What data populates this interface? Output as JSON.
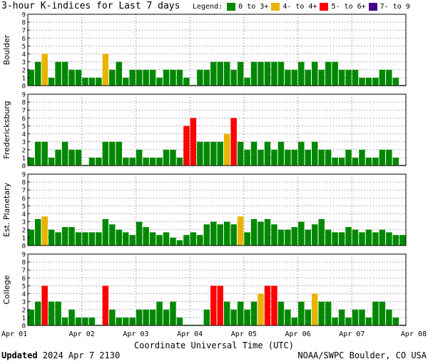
{
  "title": "3-hour K-indices for Last 7 days",
  "legend": {
    "label": "Legend:",
    "items": [
      {
        "text": "0 to 3+",
        "color": "#008800"
      },
      {
        "text": "4- to 4+",
        "color": "#e8b400"
      },
      {
        "text": "5- to 6+",
        "color": "#ff0000"
      },
      {
        "text": "7- to 9",
        "color": "#440088"
      }
    ]
  },
  "footer": {
    "updated_label": "Updated",
    "updated_value": "2024 Apr  7 2130",
    "credit": "NOAA/SWPC Boulder, CO USA"
  },
  "chart_data": [
    {
      "type": "bar",
      "ylabel": "Boulder",
      "ylim": [
        0,
        9
      ],
      "values": [
        2,
        3,
        4,
        1,
        3,
        3,
        2,
        2,
        1,
        1,
        1,
        4,
        2,
        3,
        1,
        2,
        2,
        2,
        2,
        1,
        2,
        2,
        2,
        1,
        0,
        2,
        2,
        3,
        3,
        3,
        2,
        3,
        1,
        3,
        3,
        3,
        3,
        3,
        2,
        2,
        3,
        2,
        3,
        2,
        3,
        3,
        2,
        2,
        2,
        1,
        1,
        1,
        2,
        2,
        1,
        0
      ]
    },
    {
      "type": "bar",
      "ylabel": "Fredericksburg",
      "ylim": [
        0,
        9
      ],
      "values": [
        1,
        3,
        3,
        1,
        2,
        3,
        2,
        2,
        0,
        1,
        1,
        3,
        3,
        3,
        1,
        1,
        2,
        1,
        1,
        1,
        2,
        2,
        1,
        5,
        6,
        3,
        3,
        3,
        3,
        4,
        6,
        3,
        2,
        3,
        2,
        3,
        2,
        3,
        2,
        2,
        3,
        2,
        3,
        2,
        2,
        1,
        1,
        2,
        1,
        2,
        1,
        1,
        2,
        2,
        1,
        0
      ]
    },
    {
      "type": "bar",
      "ylabel": "Est. Planetary",
      "ylim": [
        0,
        9
      ],
      "values": [
        2,
        3.33,
        3.67,
        2,
        1.67,
        2.33,
        2.33,
        1.67,
        1.67,
        1.67,
        1.67,
        3.33,
        2.67,
        2,
        1.67,
        1.33,
        3,
        2.33,
        1.67,
        1.33,
        1.67,
        1,
        0.67,
        1.33,
        1.67,
        1.33,
        2.67,
        3,
        2.67,
        3,
        2.67,
        3.67,
        1.67,
        3.33,
        3,
        3.33,
        2.67,
        2,
        2,
        2.33,
        3,
        2,
        2.67,
        3.33,
        2,
        1.67,
        1.67,
        2.33,
        2,
        1.67,
        2,
        1.67,
        2,
        1.67,
        1.33,
        1.33
      ]
    },
    {
      "type": "bar",
      "ylabel": "College",
      "ylim": [
        0,
        9
      ],
      "values": [
        2,
        3,
        5,
        3,
        3,
        1,
        2,
        1,
        1,
        1,
        0,
        5,
        2,
        1,
        1,
        1,
        2,
        2,
        2,
        3,
        2,
        3,
        1,
        0,
        0,
        0,
        2,
        5,
        5,
        3,
        2,
        3,
        2,
        3,
        4,
        5,
        5,
        3,
        2,
        1,
        3,
        2,
        4,
        3,
        3,
        1,
        2,
        1,
        2,
        2,
        1,
        3,
        3,
        2,
        1,
        0
      ]
    }
  ],
  "x_ticks": [
    "Apr 01",
    "Apr 02",
    "Apr 03",
    "Apr 04",
    "Apr 05",
    "Apr 06",
    "Apr 07",
    "Apr 08"
  ],
  "xlabel": "Coordinate Universal Time (UTC)",
  "y_ticks": [
    "0",
    "1",
    "2",
    "3",
    "4",
    "5",
    "6",
    "7",
    "8",
    "9"
  ]
}
